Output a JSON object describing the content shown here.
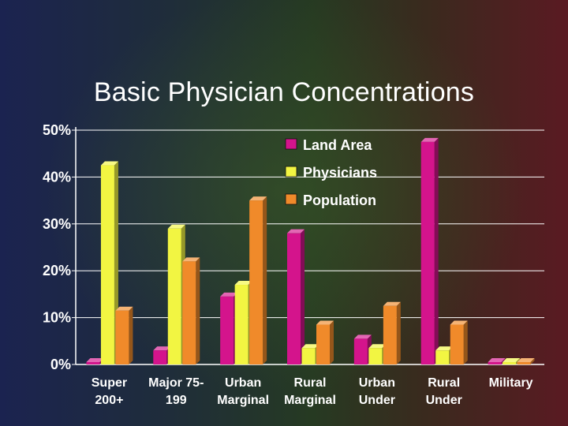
{
  "slide": {
    "title": "Basic Physician Concentrations"
  },
  "chart_data": {
    "type": "bar",
    "title": "Basic Physician Concentrations",
    "xlabel": "",
    "ylabel": "",
    "ylim": [
      0,
      50
    ],
    "yticks": [
      "0%",
      "10%",
      "20%",
      "30%",
      "40%",
      "50%"
    ],
    "grid": true,
    "legend": "top-right",
    "categories": [
      [
        "Super",
        "200+"
      ],
      [
        "Major 75-",
        "199"
      ],
      [
        "Urban",
        "Marginal"
      ],
      [
        "Rural",
        "Marginal"
      ],
      [
        "Urban",
        "Under"
      ],
      [
        "Rural",
        "Under"
      ],
      [
        "Military"
      ]
    ],
    "series": [
      {
        "name": "Land Area",
        "color": "#d4148c",
        "values": [
          0.5,
          3,
          14.5,
          28,
          5.5,
          47.5,
          0.5
        ]
      },
      {
        "name": "Physicians",
        "color": "#f2f542",
        "values": [
          42.5,
          29,
          17,
          3.5,
          3.5,
          3,
          0.5
        ]
      },
      {
        "name": "Population",
        "color": "#f08a2a",
        "values": [
          11.5,
          22,
          35,
          8.5,
          12.5,
          8.5,
          0.5
        ]
      }
    ]
  }
}
